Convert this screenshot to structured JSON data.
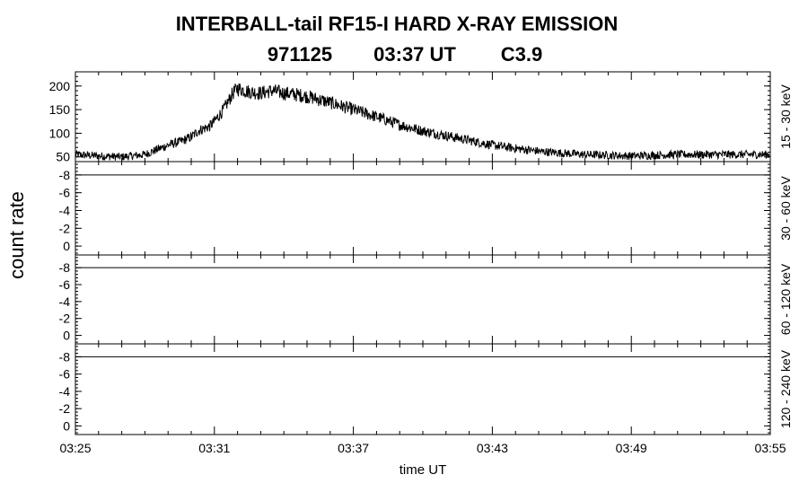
{
  "chart_data": {
    "type": "line",
    "title": "INTERBALL-tail  RF15-I  HARD  X-RAY  EMISSION",
    "subtitle": {
      "date": "971125",
      "time": "03:37 UT",
      "class": "C3.9"
    },
    "ylabel": "count rate",
    "xlabel": "time UT",
    "x_tick_labels": [
      "03:25",
      "03:31",
      "03:37",
      "03:43",
      "03:49",
      "03:55"
    ],
    "x_range_minutes": [
      0,
      30
    ],
    "panels": [
      {
        "name": "15 - 30 keV",
        "ylim": [
          40,
          230
        ],
        "y_ticks": [
          "50",
          "100",
          "150",
          "200"
        ],
        "y_tick_values": [
          50,
          100,
          150,
          200
        ],
        "x_minutes": [
          0,
          1,
          2,
          3,
          3.5,
          4,
          4.5,
          5,
          5.3,
          5.8,
          6.0,
          6.4,
          6.8,
          7.0,
          7.5,
          8.0,
          8.5,
          9.0,
          9.5,
          10,
          11,
          12,
          13,
          14,
          15,
          16,
          17,
          18,
          19,
          20,
          21,
          22,
          24,
          26,
          28,
          30
        ],
        "y_values": [
          55,
          52,
          50,
          55,
          65,
          75,
          82,
          92,
          105,
          115,
          125,
          150,
          185,
          195,
          188,
          185,
          190,
          185,
          182,
          178,
          165,
          150,
          135,
          118,
          105,
          95,
          85,
          75,
          68,
          62,
          58,
          55,
          52,
          55,
          55,
          55
        ]
      },
      {
        "name": "30 - 60 keV",
        "ylim": [
          -1,
          9.5
        ],
        "y_ticks": [
          "-8",
          "-6",
          "-4",
          "-2",
          "0"
        ],
        "y_tick_values": [
          8,
          6,
          4,
          2,
          0
        ],
        "baseline": 8
      },
      {
        "name": "60 - 120 keV",
        "ylim": [
          -1,
          9.5
        ],
        "y_ticks": [
          "-8",
          "-6",
          "-4",
          "-2",
          "0"
        ],
        "y_tick_values": [
          8,
          6,
          4,
          2,
          0
        ],
        "baseline": 8
      },
      {
        "name": "120 - 240 keV",
        "ylim": [
          -1,
          9.5
        ],
        "y_ticks": [
          "-8",
          "-6",
          "-4",
          "-2",
          "0"
        ],
        "y_tick_values": [
          8,
          6,
          4,
          2,
          0
        ],
        "baseline": 8
      }
    ]
  }
}
